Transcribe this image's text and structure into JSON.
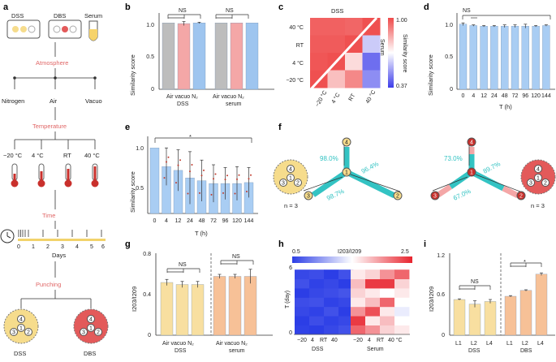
{
  "panel_a": {
    "label": "a",
    "samples": [
      "DSS",
      "DBS",
      "Serum"
    ],
    "atmosphere_title": "Atmosphere",
    "atmosphere": [
      "Nitrogen",
      "Air",
      "Vacuo"
    ],
    "temperature_title": "Temperature",
    "temperatures": [
      "−20 °C",
      "4 °C",
      "RT",
      "40 °C"
    ],
    "time_title": "Time",
    "days_ticks": [
      "0",
      "1",
      "2",
      "3",
      "4",
      "5",
      "6"
    ],
    "days_label": "Days",
    "punching_title": "Punching",
    "punch_labels": [
      "DSS",
      "DBS"
    ],
    "spots": [
      "1",
      "2",
      "3",
      "4"
    ],
    "colors": {
      "title_red": "#e06666",
      "yellow": "#f6dc8c",
      "red_disc": "#e35a5a",
      "timeline": "#f2d36b"
    }
  },
  "panel_b": {
    "label": "b",
    "ylabel": "Similarity score",
    "yticks": [
      "0",
      "0.5",
      "1.0"
    ],
    "groups": [
      {
        "ticks": "Air vacuo N₂",
        "name": "DSS"
      },
      {
        "ticks": "Air vacuo N₂",
        "name": "serum"
      }
    ],
    "ns": [
      "NS",
      "NS"
    ]
  },
  "panel_c": {
    "label": "c",
    "top": "DSS",
    "right": "Serum",
    "rows": [
      "40 °C",
      "RT",
      "4 °C",
      "−20 °C"
    ],
    "cols": [
      "−20 °C",
      "4 °C",
      "RT",
      "40 °C"
    ],
    "cbar_label": "Similarity score",
    "cbar_max": "1.00",
    "cbar_min": "0.37"
  },
  "panel_d": {
    "label": "d",
    "ylabel": "Similarity score",
    "xlabel": "T (h)",
    "yticks": [
      "0",
      "0.5",
      "1.0"
    ],
    "ns": "NS"
  },
  "panel_e": {
    "label": "e",
    "ylabel": "Similarity score",
    "xlabel": "T (h)",
    "yticks": [
      "0.5",
      "1.0"
    ],
    "sig": "*"
  },
  "panel_f": {
    "label": "f",
    "left_n": "n = 3",
    "right_n": "n = 3",
    "left_pct": [
      "98.0%",
      "96.4%",
      "98.7%"
    ],
    "right_pct": [
      "73.0%",
      "89.7%",
      "67.0%"
    ],
    "spots": [
      "1",
      "2",
      "3",
      "4"
    ]
  },
  "panel_g": {
    "label": "g",
    "ylabel": "I203/I209",
    "yticks": [
      "0",
      "0.4",
      "0.8"
    ],
    "groups": [
      {
        "ticks": "Air vacuo N₂",
        "name": "DSS"
      },
      {
        "ticks": "Air vacuo N₂",
        "name": "serum"
      }
    ],
    "ns": [
      "NS",
      "NS"
    ]
  },
  "panel_h": {
    "label": "h",
    "cbar_title": "I203/I209",
    "cbar_min": "0.5",
    "cbar_max": "2.5",
    "ylabel": "T (day)",
    "yticks": [
      "0",
      "6"
    ],
    "xticks_left": [
      "−20",
      "4",
      "RT",
      "40"
    ],
    "xticks_right": [
      "−20",
      "4",
      "RT",
      "40 °C"
    ],
    "group_left": "DSS",
    "group_right": "Serum"
  },
  "panel_i": {
    "label": "i",
    "ylabel": "I203/I209",
    "yticks": [
      "0",
      "0.6",
      "1.2"
    ],
    "ticks": [
      "L1",
      "L2",
      "L4",
      "L1",
      "L2",
      "L4"
    ],
    "groups": [
      "DSS",
      "DBS"
    ],
    "ns": "NS",
    "sig": "*"
  },
  "chart_data": [
    {
      "type": "bar",
      "panel": "b",
      "categories": [
        "Air",
        "vacuo",
        "N2",
        "Air",
        "vacuo",
        "N2"
      ],
      "groups": [
        "DSS",
        "serum"
      ],
      "values": [
        1.0,
        0.99,
        1.0,
        1.0,
        1.0,
        1.0
      ],
      "errors": [
        0.0,
        0.03,
        0.01,
        0.0,
        0.0,
        0.0
      ],
      "ylim": [
        0,
        1.1
      ],
      "colors": [
        "#bdbdbd",
        "#f4a7a7",
        "#9ec5ef",
        "#bdbdbd",
        "#f4a7a7",
        "#9ec5ef"
      ]
    },
    {
      "type": "heatmap",
      "panel": "c",
      "rows": [
        "40 °C",
        "RT",
        "4 °C",
        "−20 °C"
      ],
      "cols": [
        "−20 °C",
        "4 °C",
        "RT",
        "40 °C"
      ],
      "upper_DSS": [
        [
          0.97,
          0.97,
          0.96,
          1.0
        ],
        [
          0.98,
          0.98,
          1.0
        ],
        [
          0.99,
          1.0
        ],
        [
          1.0
        ]
      ],
      "lower_Serum": [
        [
          0.6
        ],
        [
          0.75,
          0.45
        ],
        [
          0.8,
          0.9,
          0.5
        ]
      ],
      "range": [
        0.37,
        1.0
      ]
    },
    {
      "type": "bar",
      "panel": "d",
      "x": [
        0,
        4,
        12,
        24,
        48,
        72,
        96,
        120,
        144
      ],
      "values": [
        0.98,
        0.96,
        0.95,
        0.95,
        0.95,
        0.95,
        0.95,
        0.95,
        0.96
      ],
      "errors": [
        0.02,
        0.01,
        0.01,
        0.01,
        0.02,
        0.02,
        0.03,
        0.01,
        0.01
      ],
      "ylim": [
        0,
        1.1
      ],
      "xlabel": "T (h)"
    },
    {
      "type": "bar",
      "panel": "e",
      "x": [
        0,
        4,
        12,
        24,
        48,
        72,
        96,
        120,
        144
      ],
      "values": [
        1.0,
        0.8,
        0.76,
        0.68,
        0.65,
        0.62,
        0.62,
        0.62,
        0.63
      ],
      "errors": [
        0.0,
        0.2,
        0.22,
        0.28,
        0.22,
        0.2,
        0.17,
        0.18,
        0.16
      ],
      "ylim": [
        0.3,
        1.08
      ],
      "xlabel": "T (h)"
    },
    {
      "type": "bar",
      "panel": "g",
      "categories": [
        "Air",
        "vacuo",
        "N2",
        "Air",
        "vacuo",
        "N2"
      ],
      "groups": [
        "DSS",
        "serum"
      ],
      "values": [
        0.52,
        0.5,
        0.5,
        0.58,
        0.58,
        0.58
      ],
      "errors": [
        0.03,
        0.03,
        0.03,
        0.02,
        0.02,
        0.07
      ],
      "ylim": [
        0,
        0.8
      ],
      "colors": [
        "#f8dfa0",
        "#f8dfa0",
        "#f8dfa0",
        "#f7c197",
        "#f7c197",
        "#f7c197"
      ]
    },
    {
      "type": "heatmap",
      "panel": "h",
      "groups": [
        "DSS",
        "Serum"
      ],
      "cols": [
        "−20",
        "4",
        "RT",
        "40"
      ],
      "T_days": [
        0,
        1,
        2,
        3,
        4,
        5,
        6
      ],
      "DSS": [
        [
          0.52,
          0.5,
          0.55,
          0.6
        ],
        [
          0.5,
          0.58,
          0.52,
          0.55
        ],
        [
          0.55,
          0.52,
          0.6,
          0.5
        ],
        [
          0.58,
          0.6,
          0.52,
          0.55
        ],
        [
          0.5,
          0.55,
          0.58,
          0.62
        ],
        [
          0.6,
          0.52,
          0.55,
          0.5
        ],
        [
          0.55,
          0.58,
          0.5,
          0.6
        ]
      ],
      "Serum": [
        [
          2.2,
          2.0,
          1.7,
          1.6
        ],
        [
          2.4,
          1.6,
          1.8,
          1.5
        ],
        [
          2.0,
          2.3,
          1.6,
          1.4
        ],
        [
          1.6,
          1.8,
          2.2,
          1.5
        ],
        [
          1.7,
          1.6,
          1.5,
          1.6
        ],
        [
          1.8,
          2.4,
          2.4,
          1.7
        ],
        [
          1.6,
          1.7,
          2.0,
          2.2
        ]
      ],
      "range": [
        0.5,
        2.5
      ]
    },
    {
      "type": "bar",
      "panel": "i",
      "categories": [
        "L1",
        "L2",
        "L4",
        "L1",
        "L2",
        "L4"
      ],
      "groups": [
        "DSS",
        "DBS"
      ],
      "values": [
        0.55,
        0.48,
        0.52,
        0.6,
        0.69,
        0.94
      ],
      "errors": [
        0.01,
        0.05,
        0.03,
        0.01,
        0.01,
        0.02
      ],
      "ylim": [
        0,
        1.2
      ],
      "colors": [
        "#f8dfa0",
        "#f8dfa0",
        "#f8dfa0",
        "#f7c197",
        "#f7c197",
        "#f7c197"
      ]
    }
  ]
}
